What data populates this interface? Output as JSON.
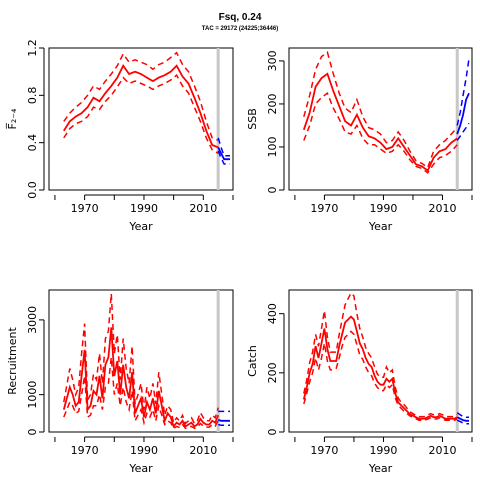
{
  "header": {
    "title": "Fsq, 0.24",
    "subtitle": "TAC = 29172 (24225;36446)"
  },
  "colors": {
    "history": "#ff0000",
    "projection": "#0000ff",
    "marker": "#c8c8c8"
  },
  "chart_data": [
    {
      "type": "line",
      "id": "f",
      "ylabel": "F̅₂₋₄",
      "xlabel": "Year",
      "xlim": [
        1958,
        2020
      ],
      "ylim": [
        0,
        1.2
      ],
      "xticks": [
        1970,
        1990,
        2010
      ],
      "yticks": [
        0.0,
        0.4,
        0.8,
        1.2
      ],
      "ytick_labels": [
        "0.0",
        "0.4",
        "0.8",
        "1.2"
      ],
      "tac_year": 2015,
      "history": {
        "x": [
          1963,
          1965,
          1967,
          1969,
          1971,
          1973,
          1975,
          1977,
          1979,
          1981,
          1983,
          1985,
          1987,
          1989,
          1991,
          1993,
          1995,
          1997,
          1999,
          2001,
          2003,
          2005,
          2007,
          2009,
          2011,
          2013,
          2015
        ],
        "median": [
          0.5,
          0.58,
          0.62,
          0.65,
          0.7,
          0.78,
          0.75,
          0.82,
          0.88,
          0.95,
          1.05,
          0.98,
          1.0,
          0.98,
          0.95,
          0.92,
          0.95,
          0.97,
          1.0,
          1.05,
          0.96,
          0.9,
          0.78,
          0.65,
          0.5,
          0.38,
          0.36
        ],
        "lower": [
          0.44,
          0.52,
          0.56,
          0.58,
          0.62,
          0.7,
          0.68,
          0.75,
          0.8,
          0.87,
          0.95,
          0.9,
          0.92,
          0.9,
          0.88,
          0.85,
          0.88,
          0.9,
          0.93,
          0.97,
          0.88,
          0.82,
          0.7,
          0.58,
          0.44,
          0.34,
          0.31
        ],
        "upper": [
          0.58,
          0.65,
          0.7,
          0.74,
          0.8,
          0.88,
          0.85,
          0.92,
          0.98,
          1.05,
          1.15,
          1.08,
          1.1,
          1.08,
          1.06,
          1.02,
          1.06,
          1.08,
          1.12,
          1.16,
          1.06,
          1.0,
          0.88,
          0.75,
          0.58,
          0.44,
          0.42
        ]
      },
      "projection": {
        "x": [
          2015,
          2016,
          2017,
          2018,
          2019
        ],
        "median": [
          0.36,
          0.31,
          0.26,
          0.26,
          0.26
        ],
        "lower": [
          0.33,
          0.27,
          0.22,
          0.22,
          0.22
        ],
        "upper": [
          0.44,
          0.36,
          0.29,
          0.29,
          0.29
        ]
      }
    },
    {
      "type": "line",
      "id": "ssb",
      "ylabel": "SSB",
      "xlabel": "Year",
      "xlim": [
        1958,
        2020
      ],
      "ylim": [
        0,
        330
      ],
      "xticks": [
        1970,
        1990,
        2010
      ],
      "yticks": [
        0,
        100,
        200,
        300
      ],
      "ytick_labels": [
        "0",
        "100",
        "200",
        "300"
      ],
      "tac_year": 2015,
      "history": {
        "x": [
          1963,
          1965,
          1967,
          1969,
          1971,
          1973,
          1975,
          1977,
          1979,
          1981,
          1983,
          1985,
          1987,
          1989,
          1991,
          1993,
          1995,
          1997,
          1999,
          2001,
          2003,
          2005,
          2007,
          2009,
          2011,
          2013,
          2015
        ],
        "median": [
          140,
          180,
          240,
          260,
          270,
          230,
          195,
          160,
          150,
          175,
          145,
          125,
          120,
          110,
          95,
          100,
          120,
          100,
          80,
          60,
          55,
          45,
          75,
          90,
          95,
          110,
          120
        ],
        "lower": [
          115,
          150,
          200,
          215,
          225,
          190,
          165,
          135,
          130,
          150,
          120,
          105,
          105,
          95,
          85,
          90,
          105,
          90,
          70,
          55,
          50,
          40,
          60,
          75,
          80,
          90,
          105
        ],
        "upper": [
          170,
          220,
          280,
          310,
          320,
          270,
          225,
          190,
          180,
          210,
          170,
          145,
          140,
          130,
          110,
          115,
          135,
          115,
          90,
          68,
          62,
          52,
          90,
          105,
          115,
          130,
          145
        ]
      },
      "projection": {
        "x": [
          2015,
          2016,
          2017,
          2018,
          2019
        ],
        "median": [
          130,
          150,
          175,
          210,
          225
        ],
        "lower": [
          115,
          125,
          135,
          145,
          155
        ],
        "upper": [
          150,
          180,
          220,
          260,
          305
        ]
      }
    },
    {
      "type": "line",
      "id": "recruitment",
      "ylabel": "Recruitment",
      "xlabel": "Year",
      "xlim": [
        1958,
        2020
      ],
      "ylim": [
        0,
        3800
      ],
      "xticks": [
        1970,
        1990,
        2010
      ],
      "yticks": [
        0,
        1000,
        3000
      ],
      "ytick_labels": [
        "0",
        "1000",
        "3000"
      ],
      "tac_year": 2015,
      "history": {
        "x": [
          1963,
          1964,
          1965,
          1966,
          1967,
          1968,
          1969,
          1970,
          1971,
          1972,
          1973,
          1974,
          1975,
          1976,
          1977,
          1978,
          1979,
          1980,
          1981,
          1982,
          1983,
          1984,
          1985,
          1986,
          1987,
          1988,
          1989,
          1990,
          1991,
          1992,
          1993,
          1994,
          1995,
          1996,
          1997,
          1998,
          1999,
          2000,
          2001,
          2002,
          2003,
          2004,
          2005,
          2006,
          2007,
          2008,
          2009,
          2010,
          2011,
          2012,
          2013,
          2014,
          2015
        ],
        "median": [
          600,
          900,
          1200,
          1000,
          700,
          800,
          1500,
          2200,
          600,
          700,
          1100,
          1000,
          1500,
          900,
          1800,
          2000,
          2800,
          1500,
          1900,
          1000,
          1800,
          1200,
          900,
          1600,
          500,
          700,
          900,
          400,
          800,
          600,
          900,
          500,
          1100,
          700,
          300,
          500,
          400,
          150,
          250,
          200,
          300,
          150,
          200,
          250,
          150,
          200,
          350,
          250,
          200,
          200,
          300,
          250,
          450
        ],
        "lower": [
          400,
          600,
          800,
          700,
          500,
          550,
          1000,
          1500,
          400,
          450,
          700,
          700,
          1000,
          600,
          1200,
          1300,
          2000,
          1000,
          1300,
          700,
          1200,
          800,
          600,
          1100,
          300,
          450,
          600,
          250,
          500,
          400,
          600,
          300,
          700,
          450,
          200,
          300,
          250,
          100,
          150,
          120,
          200,
          100,
          130,
          150,
          100,
          130,
          230,
          160,
          130,
          130,
          200,
          160,
          300
        ],
        "upper": [
          800,
          1250,
          1700,
          1400,
          1000,
          1200,
          2100,
          2900,
          850,
          1000,
          1550,
          1400,
          2100,
          1300,
          2500,
          2700,
          3700,
          2100,
          2600,
          1400,
          2500,
          1700,
          1300,
          2300,
          750,
          1000,
          1300,
          600,
          1200,
          900,
          1300,
          750,
          1600,
          1000,
          450,
          700,
          600,
          250,
          380,
          300,
          450,
          230,
          300,
          380,
          230,
          300,
          520,
          380,
          300,
          300,
          450,
          380,
          650
        ]
      },
      "projection": {
        "x": [
          2015,
          2016,
          2017,
          2018,
          2019
        ],
        "median": [
          330,
          300,
          300,
          300,
          300
        ],
        "lower": [
          200,
          180,
          180,
          180,
          180
        ],
        "upper": [
          550,
          550,
          550,
          550,
          550
        ]
      }
    },
    {
      "type": "line",
      "id": "catch",
      "ylabel": "Catch",
      "xlabel": "Year",
      "xlim": [
        1958,
        2020
      ],
      "ylim": [
        0,
        480
      ],
      "xticks": [
        1970,
        1990,
        2010
      ],
      "yticks": [
        0,
        200,
        400
      ],
      "ytick_labels": [
        "0",
        "200",
        "400"
      ],
      "tac_year": 2015,
      "history": {
        "x": [
          1963,
          1964,
          1965,
          1966,
          1967,
          1968,
          1969,
          1970,
          1971,
          1972,
          1973,
          1974,
          1975,
          1976,
          1977,
          1978,
          1979,
          1980,
          1981,
          1982,
          1983,
          1984,
          1985,
          1986,
          1987,
          1988,
          1989,
          1990,
          1991,
          1992,
          1993,
          1994,
          1995,
          1996,
          1997,
          1998,
          1999,
          2000,
          2001,
          2002,
          2003,
          2004,
          2005,
          2006,
          2007,
          2008,
          2009,
          2010,
          2011,
          2012,
          2013,
          2014,
          2015
        ],
        "median": [
          110,
          150,
          200,
          230,
          290,
          250,
          300,
          350,
          280,
          240,
          240,
          240,
          290,
          330,
          370,
          380,
          390,
          380,
          340,
          300,
          280,
          250,
          230,
          220,
          190,
          170,
          160,
          160,
          180,
          170,
          180,
          130,
          100,
          90,
          80,
          70,
          60,
          55,
          50,
          45,
          45,
          45,
          50,
          55,
          50,
          50,
          55,
          50,
          45,
          45,
          45,
          45,
          50
        ],
        "lower": [
          95,
          130,
          170,
          200,
          250,
          210,
          250,
          300,
          240,
          210,
          210,
          215,
          250,
          290,
          320,
          330,
          340,
          330,
          295,
          260,
          245,
          220,
          200,
          190,
          165,
          150,
          140,
          140,
          160,
          150,
          160,
          115,
          90,
          80,
          70,
          62,
          54,
          50,
          45,
          40,
          40,
          40,
          44,
          48,
          44,
          44,
          48,
          44,
          40,
          40,
          40,
          40,
          44
        ],
        "upper": [
          130,
          175,
          235,
          270,
          330,
          290,
          350,
          410,
          320,
          270,
          270,
          270,
          330,
          380,
          430,
          450,
          470,
          460,
          400,
          350,
          320,
          285,
          265,
          250,
          220,
          195,
          185,
          185,
          220,
          200,
          210,
          150,
          115,
          100,
          92,
          80,
          68,
          62,
          56,
          52,
          52,
          52,
          58,
          62,
          58,
          58,
          62,
          58,
          52,
          52,
          52,
          52,
          58
        ]
      },
      "projection": {
        "x": [
          2015,
          2016,
          2017,
          2018,
          2019
        ],
        "median": [
          50,
          45,
          40,
          38,
          38
        ],
        "lower": [
          40,
          35,
          30,
          28,
          28
        ],
        "upper": [
          65,
          58,
          52,
          50,
          50
        ]
      }
    }
  ]
}
